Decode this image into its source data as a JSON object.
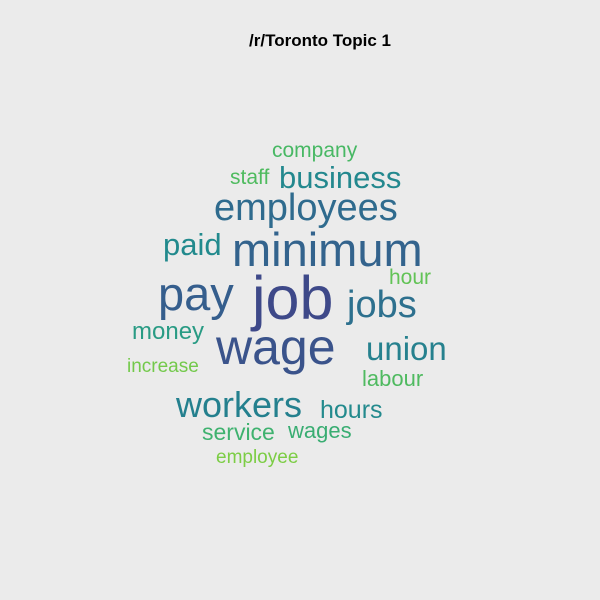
{
  "title": "/r/Toronto Topic 1",
  "words": [
    {
      "text": "company",
      "color": "#48b864"
    },
    {
      "text": "staff",
      "color": "#4fbb5f"
    },
    {
      "text": "business",
      "color": "#23888e"
    },
    {
      "text": "employees",
      "color": "#2f6b8e"
    },
    {
      "text": "paid",
      "color": "#228a8d"
    },
    {
      "text": "minimum",
      "color": "#33638d"
    },
    {
      "text": "hour",
      "color": "#62c356"
    },
    {
      "text": "pay",
      "color": "#355e8d"
    },
    {
      "text": "job",
      "color": "#3e4989"
    },
    {
      "text": "jobs",
      "color": "#2d708e"
    },
    {
      "text": "money",
      "color": "#299b84"
    },
    {
      "text": "wage",
      "color": "#3a538b"
    },
    {
      "text": "union",
      "color": "#26818e"
    },
    {
      "text": "increase",
      "color": "#73c94b"
    },
    {
      "text": "labour",
      "color": "#4fba60"
    },
    {
      "text": "workers",
      "color": "#24808e"
    },
    {
      "text": "hours",
      "color": "#238a8d"
    },
    {
      "text": "service",
      "color": "#3fb26f"
    },
    {
      "text": "wages",
      "color": "#39ad72"
    },
    {
      "text": "employee",
      "color": "#7ccd45"
    }
  ]
}
